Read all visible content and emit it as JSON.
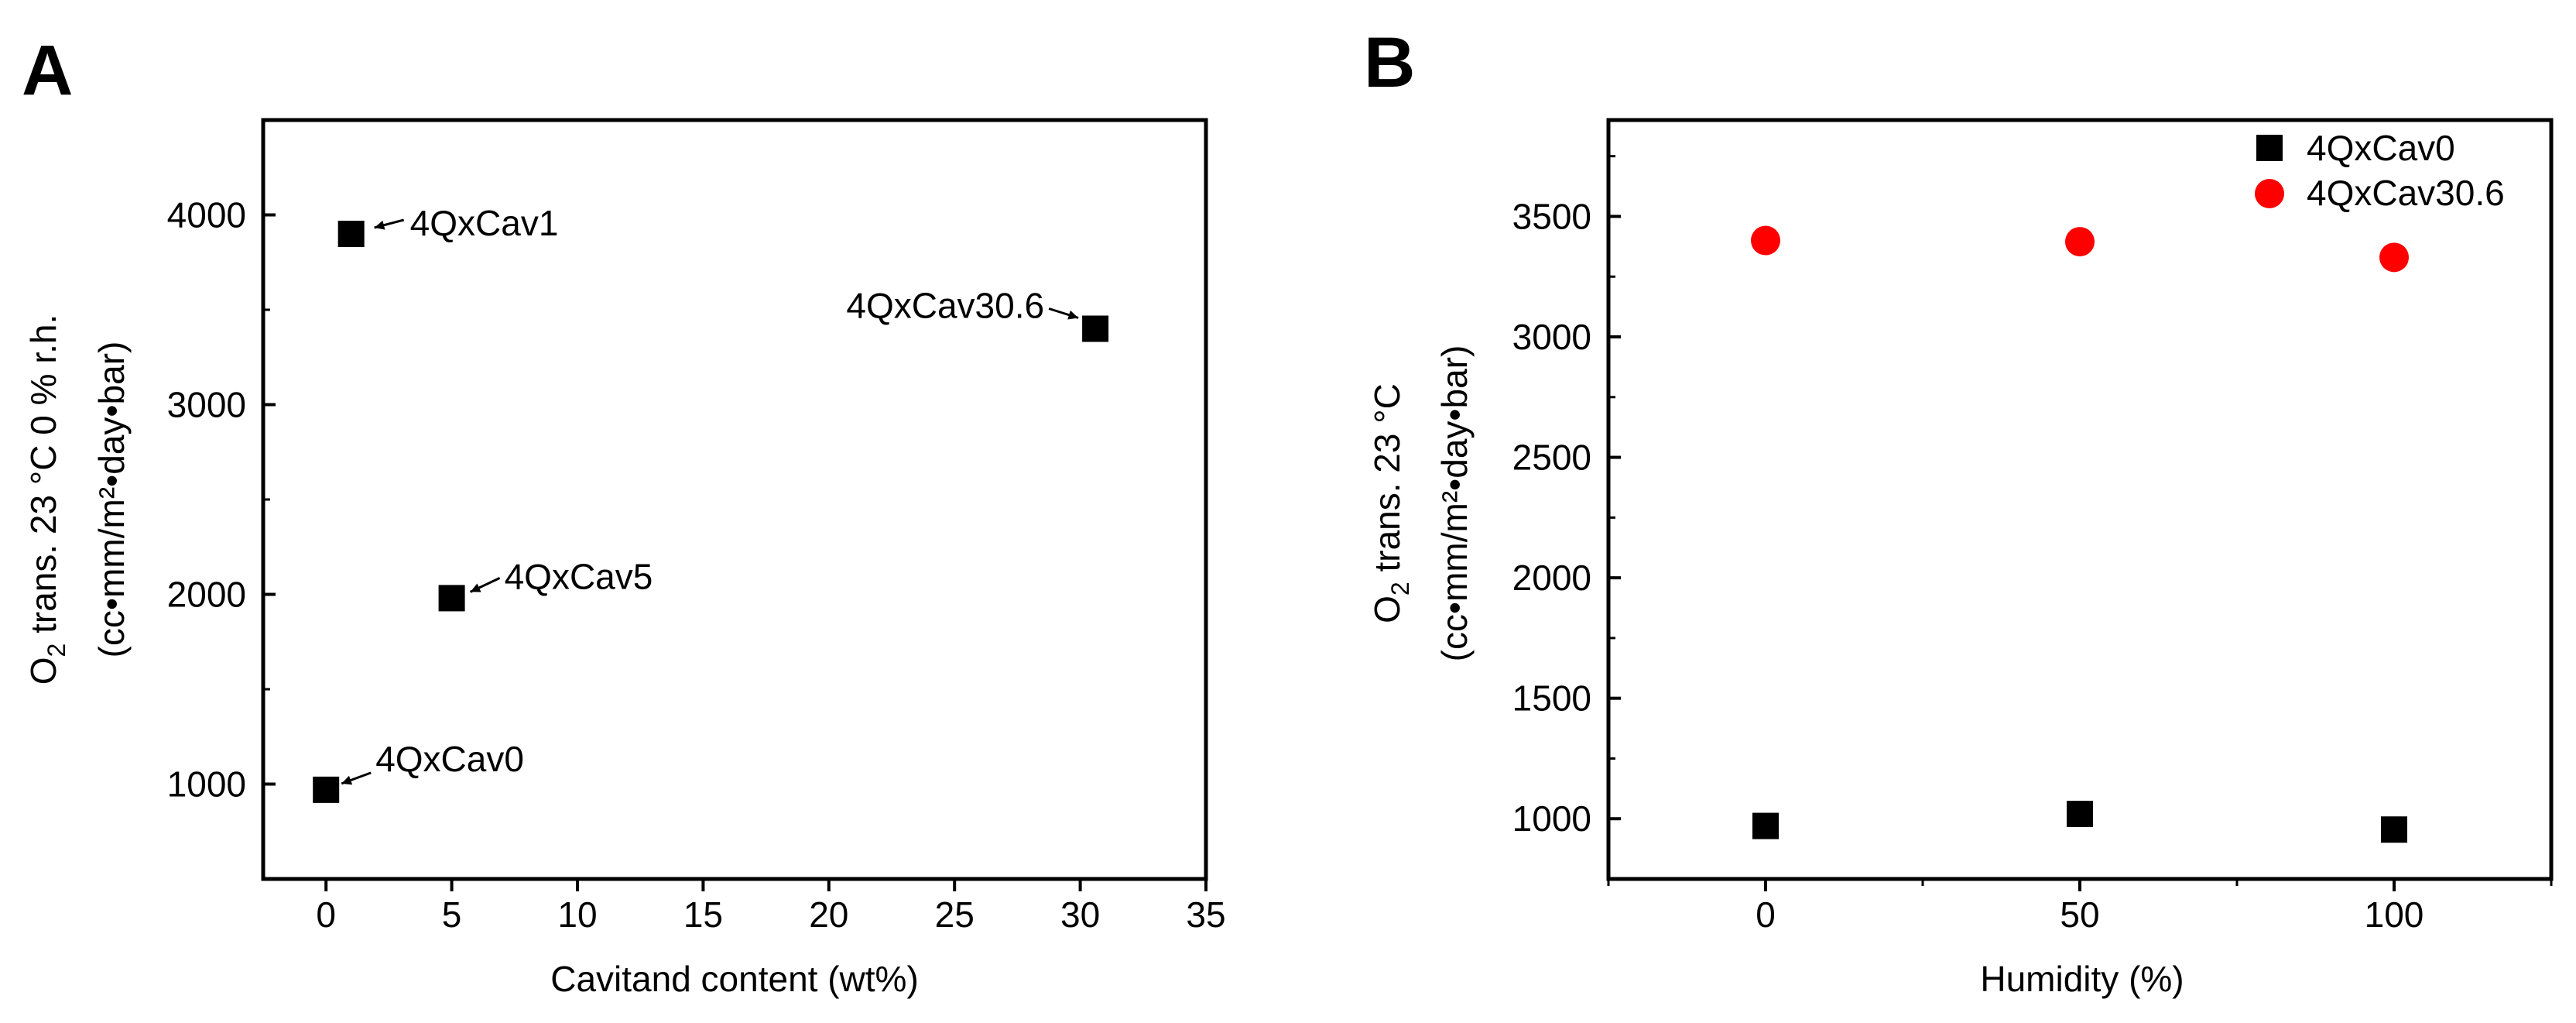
{
  "panels": {
    "a": {
      "letter": "A"
    },
    "b": {
      "letter": "B"
    }
  },
  "chart_data": [
    {
      "type": "scatter",
      "panel": "A",
      "xlabel": "Cavitand content (wt%)",
      "ylabel_line1_main": "O",
      "ylabel_line1_sub": "2",
      "ylabel_line1_rest": " trans. 23 °C 0 % r.h.",
      "ylabel_line2": "(cc•mm/m²•day•bar)",
      "xlim": [
        -2.5,
        35
      ],
      "ylim": [
        500,
        4500
      ],
      "xticks": [
        0,
        5,
        10,
        15,
        20,
        25,
        30,
        35
      ],
      "yticks": [
        1000,
        2000,
        3000,
        4000
      ],
      "series": [
        {
          "marker": "square",
          "color": "#000000",
          "points": [
            {
              "x": 0,
              "y": 970,
              "label": "4QxCav0"
            },
            {
              "x": 1,
              "y": 3900,
              "label": "4QxCav1"
            },
            {
              "x": 5,
              "y": 1980,
              "label": "4QxCav5"
            },
            {
              "x": 30.6,
              "y": 3400,
              "label": "4QxCav30.6"
            }
          ]
        }
      ]
    },
    {
      "type": "scatter",
      "panel": "B",
      "xlabel": "Humidity (%)",
      "ylabel_line1_main": "O",
      "ylabel_line1_sub": "2",
      "ylabel_line1_rest": " trans. 23 °C",
      "ylabel_line2": "(cc•mm/m²•day•bar)",
      "xlim": [
        -25,
        125
      ],
      "ylim": [
        750,
        3900
      ],
      "xticks": [
        0,
        50,
        100
      ],
      "yticks": [
        1000,
        1500,
        2000,
        2500,
        3000,
        3500
      ],
      "legend_position": "top-right",
      "series": [
        {
          "name": "4QxCav0",
          "marker": "square",
          "color": "#000000",
          "x": [
            0,
            50,
            100
          ],
          "y": [
            970,
            1020,
            955
          ]
        },
        {
          "name": "4QxCav30.6",
          "marker": "circle",
          "color": "#ff0000",
          "x": [
            0,
            50,
            100
          ],
          "y": [
            3400,
            3395,
            3330
          ]
        }
      ]
    }
  ]
}
